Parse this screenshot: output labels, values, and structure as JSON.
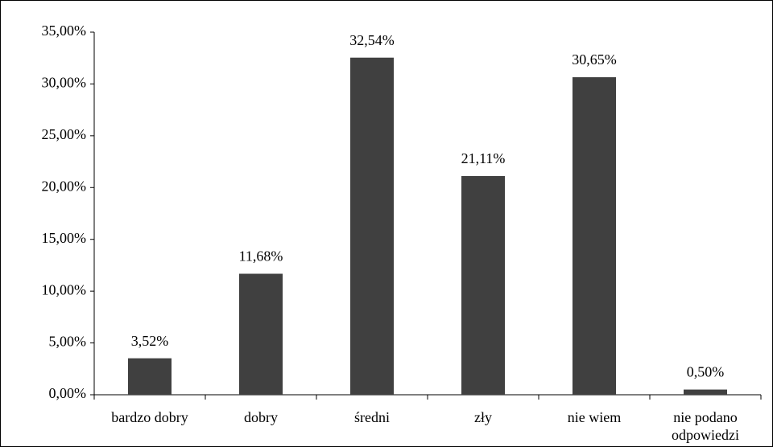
{
  "chart_data": {
    "type": "bar",
    "categories": [
      "bardzo dobry",
      "dobry",
      "średni",
      "zły",
      "nie wiem",
      "nie podano odpowiedzi"
    ],
    "values": [
      3.52,
      11.68,
      32.54,
      21.11,
      30.65,
      0.5
    ],
    "value_labels": [
      "3,52%",
      "11,68%",
      "32,54%",
      "21,11%",
      "30,65%",
      "0,50%"
    ],
    "color": "#404040",
    "ylim": [
      0,
      35
    ],
    "yticks": [
      {
        "value": 0,
        "label": "0,00%"
      },
      {
        "value": 5,
        "label": "5,00%"
      },
      {
        "value": 10,
        "label": "10,00%"
      },
      {
        "value": 15,
        "label": "15,00%"
      },
      {
        "value": 20,
        "label": "20,00%"
      },
      {
        "value": 25,
        "label": "25,00%"
      },
      {
        "value": 30,
        "label": "30,00%"
      },
      {
        "value": 35,
        "label": "35,00%"
      }
    ],
    "grid": false
  }
}
